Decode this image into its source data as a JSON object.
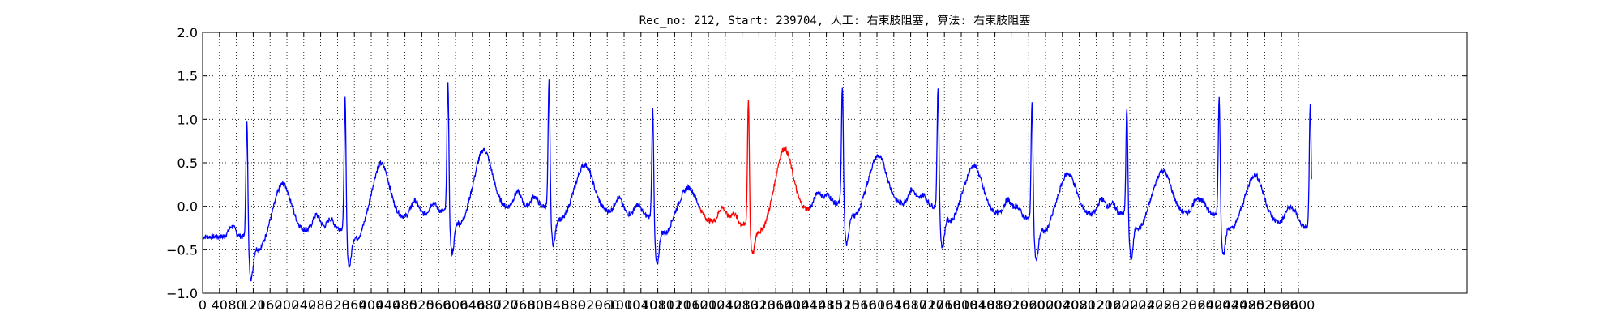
{
  "chart_data": {
    "type": "line",
    "title": "Rec_no: 212, Start: 239704, 人工: 右束肢阻塞, 算法: 右束肢阻塞",
    "xlabel": "",
    "ylabel": "",
    "xlim": [
      0,
      3000
    ],
    "ylim": [
      -1.0,
      2.0
    ],
    "grid": true,
    "x_tick_labels": [
      "0",
      "40",
      "80",
      "120",
      "160",
      "200",
      "240",
      "280",
      "320",
      "360",
      "400",
      "440",
      "480",
      "520",
      "560",
      "600",
      "640",
      "680",
      "720",
      "760",
      "800",
      "840",
      "880",
      "920",
      "960",
      "1000",
      "1040",
      "1080",
      "1120",
      "1160",
      "1200",
      "1240",
      "1280",
      "1320",
      "1360",
      "1400",
      "1440",
      "1480",
      "1520",
      "1560",
      "1600",
      "1640",
      "1680",
      "1720",
      "1760",
      "1800",
      "1840",
      "1880",
      "1920",
      "1960",
      "2000",
      "2040",
      "2080",
      "2120",
      "2160",
      "2200",
      "2240",
      "2280",
      "2320",
      "2360",
      "2400",
      "2440",
      "2480",
      "2520",
      "2560",
      "2600"
    ],
    "y_tick_labels": [
      "2.0",
      "1.5",
      "1.0",
      "0.5",
      "0.0",
      "−0.5",
      "−1.0"
    ],
    "sample_count": 2632,
    "highlight_range": [
      1180,
      1440
    ],
    "series": [
      {
        "color": "#0000ff",
        "beats": [
          {
            "r_peak": 105,
            "r_amp": 1.07,
            "s_min": -0.82,
            "t_amp": 0.22,
            "base": -0.35
          },
          {
            "r_peak": 338,
            "r_amp": 1.3,
            "s_min": -0.68,
            "t_amp": 0.42,
            "base": -0.25
          },
          {
            "r_peak": 582,
            "r_amp": 1.52,
            "s_min": -0.52,
            "t_amp": 0.63,
            "base": -0.05
          },
          {
            "r_peak": 822,
            "r_amp": 1.5,
            "s_min": -0.42,
            "t_amp": 0.52,
            "base": 0.0
          },
          {
            "r_peak": 1068,
            "r_amp": 1.18,
            "s_min": -0.65,
            "t_amp": 0.25,
            "base": -0.12
          },
          {
            "r_peak": 1295,
            "r_amp": 1.28,
            "s_min": -0.55,
            "t_amp": 0.56,
            "base": -0.22
          },
          {
            "r_peak": 1518,
            "r_amp": 1.45,
            "s_min": -0.42,
            "t_amp": 0.6,
            "base": 0.05
          },
          {
            "r_peak": 1745,
            "r_amp": 1.43,
            "s_min": -0.45,
            "t_amp": 0.52,
            "base": 0.0
          },
          {
            "r_peak": 1968,
            "r_amp": 1.28,
            "s_min": -0.6,
            "t_amp": 0.35,
            "base": -0.15
          },
          {
            "r_peak": 2193,
            "r_amp": 1.22,
            "s_min": -0.58,
            "t_amp": 0.42,
            "base": -0.08
          },
          {
            "r_peak": 2412,
            "r_amp": 1.33,
            "s_min": -0.52,
            "t_amp": 0.42,
            "base": -0.1
          },
          {
            "r_peak": 2628,
            "r_amp": 1.17,
            "s_min": -0.3,
            "t_amp": 0.0,
            "base": -0.25
          }
        ]
      },
      {
        "color": "#ff0000"
      }
    ]
  }
}
